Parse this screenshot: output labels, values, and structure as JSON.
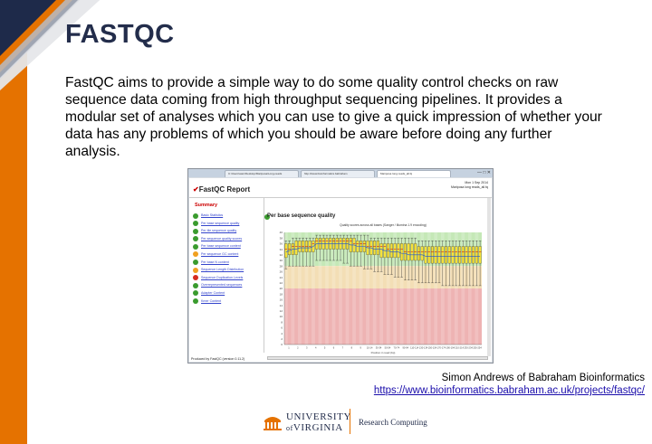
{
  "slide": {
    "title": "FASTQC",
    "description": "FastQC aims to provide a simple way to do some quality control checks on raw sequence data coming from high throughput sequencing pipelines. It provides a modular set of analyses which you can use to give a quick impression of whether your data has any problems of which you should be aware before doing any further analysis.",
    "credit": "Simon Andrews of Babraham Bioinformatics",
    "url": "https://www.bioinformatics.babraham.ac.uk/projects/fastqc/"
  },
  "screenshot": {
    "tabs": [
      "C:\\Users\\sam\\Desktop\\Mariposa\\Long-reads",
      "http://www.bioinformatics.babraham",
      "Mariposa long reads_all.fq"
    ],
    "report_title": "FastQC Report",
    "report_date": "Mon 1 Sep 2014",
    "report_file": "Mariposa long reads_all.fq",
    "summary_title": "Summary",
    "summary_items": [
      {
        "label": "Basic Statistics",
        "status": "pass"
      },
      {
        "label": "Per base sequence quality",
        "status": "pass"
      },
      {
        "label": "Per tile sequence quality",
        "status": "pass"
      },
      {
        "label": "Per sequence quality scores",
        "status": "pass"
      },
      {
        "label": "Per base sequence content",
        "status": "pass"
      },
      {
        "label": "Per sequence GC content",
        "status": "warn"
      },
      {
        "label": "Per base N content",
        "status": "pass"
      },
      {
        "label": "Sequence Length Distribution",
        "status": "warn"
      },
      {
        "label": "Sequence Duplication Levels",
        "status": "fail"
      },
      {
        "label": "Overrepresented sequences",
        "status": "pass"
      },
      {
        "label": "Adapter Content",
        "status": "pass"
      },
      {
        "label": "Kmer Content",
        "status": "pass"
      }
    ],
    "module_title": "Per base sequence quality",
    "footer": "Produced by FastQC (version 0.11.2)"
  },
  "status_colors": {
    "pass": "#3a9b2e",
    "warn": "#f0a020",
    "fail": "#d52b1e"
  },
  "chart_data": {
    "type": "box",
    "title": "Quality scores across all bases (Sanger / Illumina 1.9 encoding)",
    "xlabel": "Position in read (bp)",
    "ylabel": "",
    "ylim": [
      0,
      40
    ],
    "zones": [
      {
        "from": 28,
        "to": 40,
        "color": "#c5e8b7"
      },
      {
        "from": 20,
        "to": 28,
        "color": "#f3deb5"
      },
      {
        "from": 0,
        "to": 20,
        "color": "#eeb3b3"
      }
    ],
    "categories": [
      "1",
      "2",
      "3",
      "4",
      "5",
      "6",
      "7",
      "8",
      "9",
      "10-14",
      "15-19",
      "20-24",
      "25-29",
      "30-34",
      "35-39",
      "40-44",
      "45-49",
      "50-54",
      "55-59",
      "60-64",
      "65-69",
      "70-74",
      "75-79",
      "80-84",
      "85-89",
      "90-94",
      "95-99",
      "100-104",
      "105-109",
      "110-114",
      "115-119",
      "120-124",
      "125-129",
      "130-134",
      "135-139",
      "140-144",
      "145-149",
      "150-154",
      "155-159",
      "160-164",
      "165-169",
      "170-174",
      "175-179",
      "180-184",
      "185-189",
      "190-194",
      "195-199",
      "200-204",
      "205-209",
      "210-214",
      "215-219",
      "220-224",
      "225-229",
      "230-234",
      "235-239",
      "240-244",
      "245-249",
      "250-254"
    ],
    "x_tick_labels": [
      "1",
      "2",
      "3",
      "4",
      "5",
      "6",
      "7",
      "8",
      "9",
      "10-14",
      "30-34",
      "50-54",
      "70-74",
      "90-94",
      "110-114",
      "130-134",
      "150-154",
      "170-174",
      "190-194",
      "210-214",
      "230-234",
      "250-254"
    ],
    "q1": [
      31,
      32,
      32,
      32,
      33,
      33,
      33,
      33,
      33,
      34,
      34,
      34,
      34,
      34,
      34,
      34,
      34,
      34,
      34,
      33,
      33,
      33,
      33,
      33,
      32,
      32,
      32,
      32,
      31,
      31,
      31,
      31,
      31,
      31,
      30,
      30,
      30,
      30,
      30,
      30,
      30,
      29,
      29,
      29,
      29,
      29,
      29,
      29,
      29,
      29,
      29,
      29,
      29,
      29,
      29,
      29,
      29,
      29
    ],
    "q3": [
      36,
      36,
      36,
      37,
      37,
      37,
      37,
      37,
      37,
      38,
      38,
      38,
      38,
      38,
      38,
      38,
      38,
      38,
      38,
      38,
      38,
      37,
      37,
      37,
      37,
      37,
      37,
      37,
      36,
      36,
      36,
      36,
      36,
      36,
      36,
      36,
      36,
      36,
      36,
      35,
      35,
      35,
      35,
      35,
      35,
      35,
      35,
      35,
      35,
      35,
      35,
      35,
      35,
      35,
      35,
      35,
      35,
      35
    ],
    "median": [
      34,
      34,
      35,
      35,
      35,
      35,
      35,
      35,
      36,
      37,
      37,
      37,
      37,
      37,
      37,
      37,
      37,
      37,
      37,
      37,
      36,
      36,
      36,
      36,
      35,
      35,
      35,
      35,
      35,
      35,
      34,
      34,
      34,
      34,
      34,
      33,
      33,
      33,
      33,
      33,
      33,
      33,
      33,
      33,
      33,
      33,
      33,
      33,
      33,
      33,
      33,
      33,
      33,
      33,
      33,
      33,
      33,
      33
    ],
    "low": [
      27,
      28,
      28,
      28,
      28,
      28,
      28,
      28,
      28,
      30,
      30,
      30,
      30,
      30,
      30,
      30,
      30,
      29,
      29,
      28,
      28,
      28,
      28,
      27,
      27,
      27,
      26,
      26,
      26,
      25,
      25,
      25,
      24,
      24,
      24,
      23,
      23,
      23,
      23,
      22,
      22,
      22,
      22,
      22,
      22,
      22,
      21,
      21,
      21,
      21,
      21,
      21,
      21,
      21,
      21,
      21,
      21,
      21
    ],
    "high": [
      37,
      37,
      38,
      38,
      38,
      38,
      38,
      38,
      38,
      39,
      39,
      39,
      39,
      39,
      39,
      39,
      39,
      39,
      39,
      39,
      39,
      39,
      39,
      39,
      39,
      38,
      38,
      38,
      38,
      38,
      38,
      38,
      38,
      38,
      38,
      38,
      38,
      38,
      38,
      37,
      37,
      37,
      37,
      37,
      37,
      37,
      37,
      37,
      37,
      37,
      37,
      37,
      37,
      37,
      37,
      37,
      37,
      37
    ],
    "mean": [
      33,
      33.5,
      34,
      34,
      34.5,
      34.5,
      34.5,
      34.5,
      35,
      36,
      36,
      36,
      36,
      36,
      36,
      36,
      36,
      36,
      36,
      35.5,
      35.5,
      35,
      35,
      35,
      34.5,
      34.5,
      34,
      34,
      34,
      33.5,
      33.5,
      33,
      33,
      33,
      32.5,
      32.5,
      32,
      32,
      32,
      32,
      32,
      31.5,
      31.5,
      31.5,
      31.5,
      31.5,
      31.5,
      31.5,
      31.5,
      31.5,
      31.5,
      31.5,
      31.5,
      31.5,
      31.5,
      31.5,
      31.5,
      31.5
    ]
  }
}
